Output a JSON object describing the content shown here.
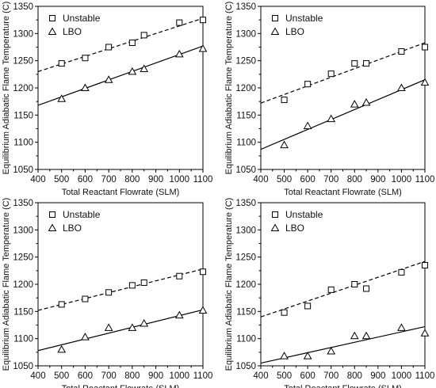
{
  "chart_data": [
    {
      "type": "scatter",
      "xlabel": "Total Reactant Flowrate (SLM)",
      "ylabel": "Equilibrium Adiabatic Flame Temperature (C)",
      "xlim": [
        400,
        1100
      ],
      "ylim": [
        1050,
        1350
      ],
      "xticks": [
        400,
        500,
        600,
        700,
        800,
        900,
        1000,
        1100
      ],
      "yticks": [
        1050,
        1100,
        1150,
        1200,
        1250,
        1300,
        1350
      ],
      "legend_position": "top-left",
      "series": [
        {
          "name": "Unstable",
          "marker": "square",
          "x": [
            500,
            600,
            700,
            800,
            850,
            1000,
            1100
          ],
          "y": [
            1245,
            1255,
            1275,
            1283,
            1297,
            1320,
            1325
          ],
          "fit": {
            "style": "dashed",
            "y_at_xmin": 1230,
            "y_at_xmax": 1328
          }
        },
        {
          "name": "LBO",
          "marker": "triangle",
          "x": [
            500,
            600,
            700,
            800,
            850,
            1000,
            1100
          ],
          "y": [
            1180,
            1200,
            1215,
            1230,
            1235,
            1262,
            1272
          ],
          "fit": {
            "style": "solid",
            "y_at_xmin": 1168,
            "y_at_xmax": 1277
          }
        }
      ]
    },
    {
      "type": "scatter",
      "xlabel": "Total Reactant Flowrate (SLM)",
      "ylabel": "Equilibrium Adiabatic Flame Temperature (C)",
      "xlim": [
        400,
        1100
      ],
      "ylim": [
        1050,
        1350
      ],
      "xticks": [
        400,
        500,
        600,
        700,
        800,
        900,
        1000,
        1100
      ],
      "yticks": [
        1050,
        1100,
        1150,
        1200,
        1250,
        1300,
        1350
      ],
      "legend_position": "top-left",
      "series": [
        {
          "name": "Unstable",
          "marker": "square",
          "x": [
            500,
            600,
            700,
            800,
            850,
            1000,
            1100
          ],
          "y": [
            1178,
            1207,
            1226,
            1245,
            1245,
            1267,
            1275
          ],
          "fit": {
            "style": "dashed",
            "y_at_xmin": 1172,
            "y_at_xmax": 1283
          }
        },
        {
          "name": "LBO",
          "marker": "triangle",
          "x": [
            500,
            600,
            700,
            800,
            850,
            1000,
            1100
          ],
          "y": [
            1095,
            1130,
            1143,
            1170,
            1173,
            1200,
            1210
          ],
          "fit": {
            "style": "solid",
            "y_at_xmin": 1087,
            "y_at_xmax": 1215
          }
        }
      ]
    },
    {
      "type": "scatter",
      "xlabel": "Total Reactant Flowrate (SLM)",
      "ylabel": "Equilibrium Adiabatic Flame Temperature (C)",
      "xlim": [
        400,
        1100
      ],
      "ylim": [
        1050,
        1350
      ],
      "xticks": [
        400,
        500,
        600,
        700,
        800,
        900,
        1000,
        1100
      ],
      "yticks": [
        1050,
        1100,
        1150,
        1200,
        1250,
        1300,
        1350
      ],
      "legend_position": "top-left",
      "series": [
        {
          "name": "Unstable",
          "marker": "square",
          "x": [
            500,
            600,
            700,
            800,
            850,
            1000,
            1100
          ],
          "y": [
            1163,
            1173,
            1185,
            1198,
            1203,
            1215,
            1223
          ],
          "fit": {
            "style": "dashed",
            "y_at_xmin": 1152,
            "y_at_xmax": 1228
          }
        },
        {
          "name": "LBO",
          "marker": "triangle",
          "x": [
            500,
            600,
            700,
            800,
            850,
            1000,
            1100
          ],
          "y": [
            1080,
            1103,
            1120,
            1120,
            1128,
            1143,
            1152
          ],
          "fit": {
            "style": "solid",
            "y_at_xmin": 1078,
            "y_at_xmax": 1153
          }
        }
      ]
    },
    {
      "type": "scatter",
      "xlabel": "Total Reactant Flowrate (SLM)",
      "ylabel": "Equilibrium Adiabatic Flame Temperature (C)",
      "xlim": [
        400,
        1100
      ],
      "ylim": [
        1050,
        1350
      ],
      "xticks": [
        400,
        500,
        600,
        700,
        800,
        900,
        1000,
        1100
      ],
      "yticks": [
        1050,
        1100,
        1150,
        1200,
        1250,
        1300,
        1350
      ],
      "legend_position": "top-left",
      "series": [
        {
          "name": "Unstable",
          "marker": "square",
          "x": [
            500,
            600,
            700,
            800,
            850,
            1000,
            1100
          ],
          "y": [
            1148,
            1160,
            1190,
            1200,
            1192,
            1222,
            1235
          ],
          "fit": {
            "style": "dashed",
            "y_at_xmin": 1140,
            "y_at_xmax": 1242
          }
        },
        {
          "name": "LBO",
          "marker": "triangle",
          "x": [
            500,
            600,
            700,
            800,
            850,
            1000,
            1100
          ],
          "y": [
            1068,
            1068,
            1077,
            1105,
            1105,
            1120,
            1110
          ],
          "fit": {
            "style": "solid",
            "y_at_xmin": 1055,
            "y_at_xmax": 1122
          }
        }
      ]
    }
  ]
}
